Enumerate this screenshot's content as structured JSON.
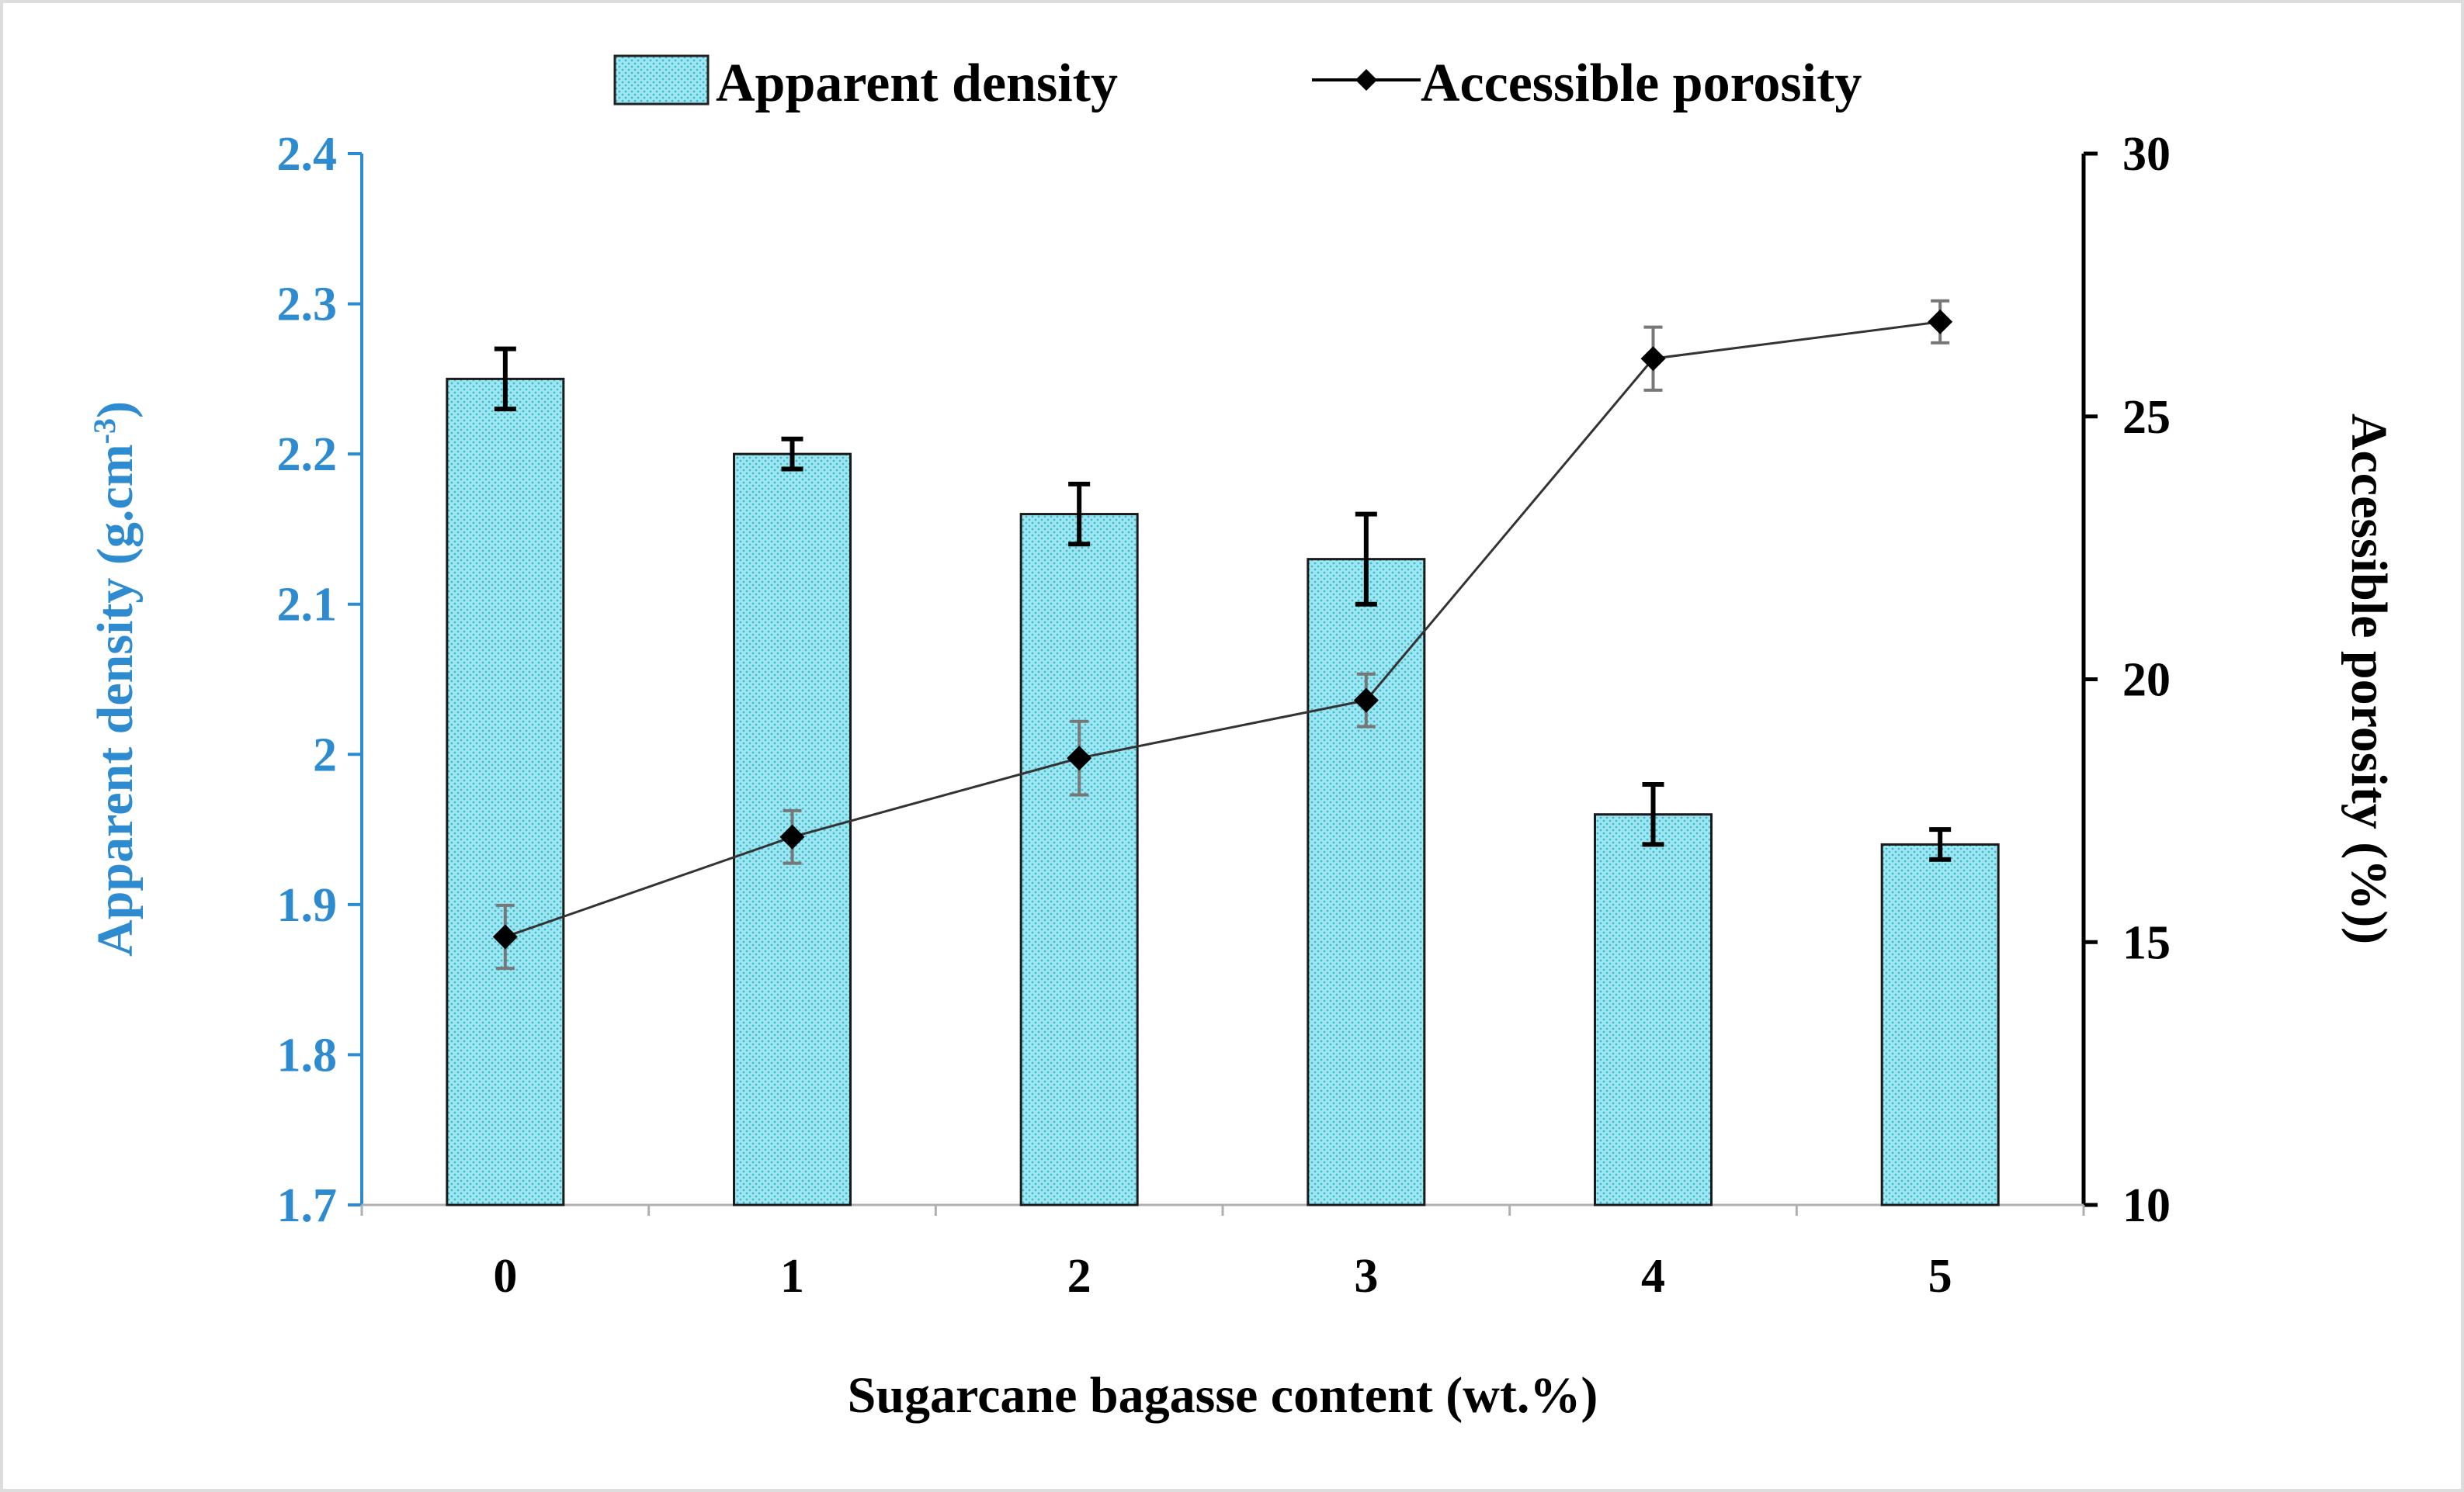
{
  "chart_data": {
    "type": "bar",
    "categories": [
      "0",
      "1",
      "2",
      "3",
      "4",
      "5"
    ],
    "xlabel": "Sugarcane bagasse content (wt.%)",
    "series": [
      {
        "name": "Apparent density",
        "type": "bar",
        "axis": "left",
        "values": [
          2.25,
          2.2,
          2.16,
          2.13,
          1.96,
          1.94
        ],
        "errors": [
          0.02,
          0.01,
          0.02,
          0.03,
          0.02,
          0.01
        ],
        "color": "#7fd9e8"
      },
      {
        "name": "Accessible porosity",
        "type": "line",
        "axis": "right",
        "values": [
          15.1,
          17.0,
          18.5,
          19.6,
          26.1,
          26.8
        ],
        "errors": [
          0.6,
          0.5,
          0.7,
          0.5,
          0.6,
          0.4
        ],
        "color": "#000000"
      }
    ],
    "y_left": {
      "label": "Apparent density (g.cm",
      "label_superscript": "-3",
      "label_suffix": ")",
      "range": [
        1.7,
        2.4
      ],
      "ticks": [
        "1.7",
        "1.8",
        "1.9",
        "2",
        "2.1",
        "2.2",
        "2.3",
        "2.4"
      ],
      "color": "#2e8bcf"
    },
    "y_right": {
      "label": "Accessible porosity (%))",
      "range": [
        10,
        30
      ],
      "ticks": [
        "10",
        "15",
        "20",
        "25",
        "30"
      ],
      "color": "#000000"
    },
    "legend": {
      "position": "top-center",
      "bar_label": "Apparent density",
      "line_label": "Accessible porosity"
    },
    "grid": false
  }
}
